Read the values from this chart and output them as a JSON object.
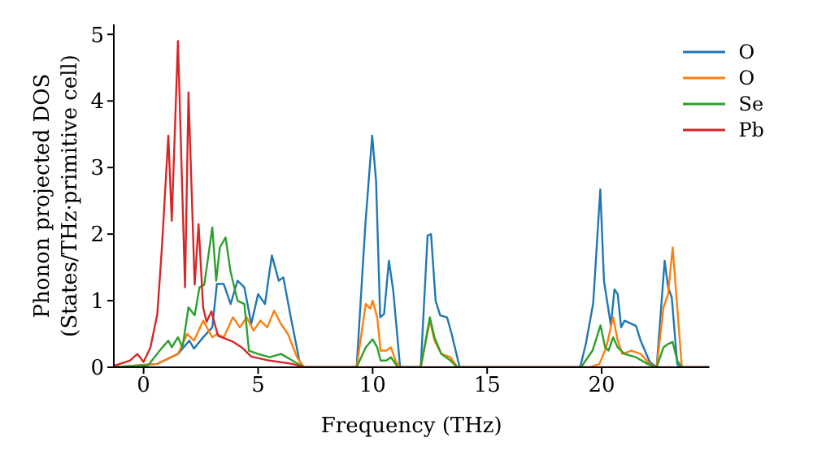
{
  "chart_data": {
    "type": "line",
    "xlabel": "Frequency (THz)",
    "ylabel": "Phonon projected DOS\n(States/THz·primitive cell)",
    "xlim": [
      -1.3,
      24.7
    ],
    "ylim": [
      0,
      5.15
    ],
    "xticks": [
      0,
      5,
      10,
      15,
      20
    ],
    "yticks": [
      0,
      1,
      2,
      3,
      4,
      5
    ],
    "legend": "top right",
    "marker": "none",
    "line_style": "solid",
    "series": [
      {
        "name": "O",
        "color": "#1f77b4",
        "x": [
          -1.3,
          0.6,
          1.5,
          2,
          2.2,
          2.6,
          3,
          3.2,
          3.5,
          3.8,
          4.1,
          4.4,
          4.7,
          5,
          5.3,
          5.6,
          5.9,
          6.1,
          6.4,
          6.8,
          7,
          9.3,
          9.69,
          9.98,
          10.15,
          10.33,
          10.5,
          10.71,
          10.9,
          11.2,
          12.1,
          12.4,
          12.55,
          12.75,
          12.95,
          13.25,
          13.45,
          13.8,
          19.06,
          19.31,
          19.63,
          19.94,
          20.1,
          20.4,
          20.56,
          20.7,
          20.85,
          21,
          21.5,
          21.7,
          22.1,
          22.4,
          22.75,
          22.9,
          23.06,
          23.3,
          23.4,
          24.7
        ],
        "values": [
          0,
          0.05,
          0.2,
          0.4,
          0.28,
          0.45,
          0.6,
          1.25,
          1.25,
          0.95,
          1.3,
          1.2,
          0.65,
          1.1,
          0.95,
          1.68,
          1.3,
          1.35,
          0.8,
          0.1,
          0,
          0,
          2.18,
          3.48,
          2.8,
          0.75,
          0.8,
          1.6,
          1.15,
          0,
          0,
          1.98,
          2,
          1,
          0.78,
          0.75,
          0.5,
          0,
          0,
          0.35,
          0.96,
          2.67,
          1.3,
          0.63,
          1.17,
          1.1,
          0.6,
          0.7,
          0.62,
          0.4,
          0.08,
          0,
          1.6,
          1.2,
          1.05,
          0.05,
          0,
          0
        ]
      },
      {
        "name": "O",
        "color": "#ff7f0e",
        "x": [
          -1.3,
          0.6,
          1.5,
          1.9,
          2.2,
          2.6,
          3,
          3.2,
          3.5,
          3.9,
          4.2,
          4.5,
          4.8,
          5.1,
          5.4,
          5.7,
          6,
          6.3,
          6.7,
          7,
          9.3,
          9.7,
          9.9,
          10,
          10.2,
          10.35,
          10.6,
          10.8,
          11,
          11.2,
          12.1,
          12.5,
          12.7,
          13,
          13.4,
          13.7,
          19.5,
          19.9,
          20.2,
          20.5,
          20.7,
          20.9,
          21.3,
          21.7,
          22.1,
          22.4,
          22.7,
          22.9,
          23.1,
          23.3,
          23.5,
          24.7
        ],
        "values": [
          0,
          0.05,
          0.2,
          0.5,
          0.4,
          0.7,
          0.45,
          0.5,
          0.45,
          0.75,
          0.6,
          0.75,
          0.55,
          0.7,
          0.6,
          0.85,
          0.65,
          0.5,
          0.15,
          0,
          0,
          0.95,
          0.88,
          1,
          0.75,
          0.25,
          0.25,
          0.3,
          0.1,
          0,
          0,
          0.7,
          0.4,
          0.2,
          0.15,
          0,
          0,
          0.05,
          0.3,
          0.75,
          0.4,
          0.2,
          0.25,
          0.2,
          0.05,
          0,
          0.9,
          1.1,
          1.8,
          0.9,
          0,
          0
        ]
      },
      {
        "name": "Se",
        "color": "#2ca02c",
        "x": [
          -1.3,
          0.2,
          0.75,
          1.08,
          1.23,
          1.5,
          1.7,
          1.96,
          2.23,
          2.44,
          2.65,
          3,
          3.17,
          3.33,
          3.58,
          3.79,
          4.1,
          4.4,
          4.6,
          5,
          5.5,
          6,
          6.5,
          7,
          9.3,
          9.7,
          10,
          10.2,
          10.35,
          10.6,
          10.8,
          11.1,
          12.1,
          12.5,
          12.7,
          13,
          13.4,
          13.7,
          19.1,
          19.6,
          19.95,
          20.15,
          20.3,
          20.5,
          20.7,
          21,
          21.5,
          22,
          22.4,
          22.7,
          22.9,
          23.1,
          23.3,
          23.5,
          24.7
        ],
        "values": [
          0,
          0.03,
          0.27,
          0.4,
          0.3,
          0.45,
          0.3,
          0.9,
          0.78,
          1.2,
          1.24,
          2.1,
          1.3,
          1.8,
          1.95,
          1.45,
          1,
          0.95,
          0.25,
          0.2,
          0.15,
          0.2,
          0.1,
          0,
          0,
          0.3,
          0.42,
          0.3,
          0.1,
          0.1,
          0.15,
          0,
          0,
          0.75,
          0.45,
          0.2,
          0.1,
          0,
          0,
          0.25,
          0.63,
          0.3,
          0.25,
          0.45,
          0.3,
          0.2,
          0.15,
          0.05,
          0,
          0.3,
          0.35,
          0.38,
          0.1,
          0,
          0
        ]
      },
      {
        "name": "Pb",
        "color": "#d62728",
        "x": [
          -1.3,
          -0.6,
          -0.27,
          0,
          0.3,
          0.6,
          0.8,
          1.08,
          1.23,
          1.5,
          1.81,
          1.96,
          2.23,
          2.4,
          2.6,
          2.75,
          2.96,
          3.25,
          3.87,
          4.28,
          4.7,
          5.5,
          6.5,
          7,
          24.7
        ],
        "values": [
          0.02,
          0.1,
          0.2,
          0.08,
          0.3,
          0.8,
          1.8,
          3.48,
          2.2,
          4.9,
          1.2,
          4.13,
          1.24,
          2.15,
          0.9,
          0.68,
          0.84,
          0.47,
          0.39,
          0.3,
          0.16,
          0.1,
          0.05,
          0,
          0
        ]
      }
    ]
  }
}
